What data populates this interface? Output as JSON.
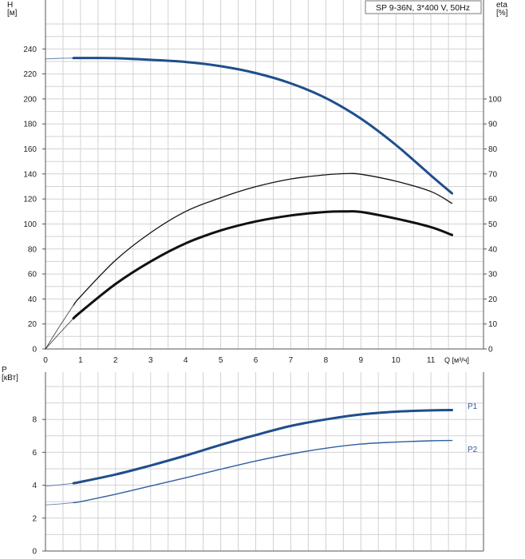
{
  "chart_data": [
    {
      "type": "line",
      "panel": "head-efficiency",
      "title": "SP 9-36N, 3*400 V, 50Hz",
      "ylabel_left": "H\n[м]",
      "ylabel_right": "eta\n[%]",
      "xlabel": "Q [м³/ч]",
      "xlim": [
        0,
        12.5
      ],
      "ylim_left": [
        0,
        260
      ],
      "ylim_right": [
        0,
        130
      ],
      "x_ticks": [
        0,
        1,
        2,
        3,
        4,
        5,
        6,
        7,
        8,
        9,
        10,
        11
      ],
      "y_ticks_left": [
        0,
        20,
        40,
        60,
        80,
        100,
        120,
        140,
        160,
        180,
        200,
        220,
        240
      ],
      "y_ticks_right": [
        0,
        10,
        20,
        30,
        40,
        50,
        60,
        70,
        80,
        90,
        100
      ],
      "grid": true,
      "series": [
        {
          "key": "head",
          "axis": "left",
          "color": "#1f4e8c",
          "extension": {
            "x": [
              0,
              0.4,
              0.8
            ],
            "y": [
              232,
              232.5,
              232.7
            ]
          },
          "x": [
            0.8,
            1,
            2,
            3,
            4,
            5,
            6,
            7,
            8,
            9,
            10,
            11,
            11.6
          ],
          "y": [
            232.7,
            232.8,
            232.6,
            231.3,
            229.6,
            226.2,
            220.7,
            212.5,
            200.7,
            184.3,
            163.2,
            138.8,
            124.5
          ]
        },
        {
          "key": "efficiency-total",
          "axis": "left",
          "color": "#111111",
          "extension": {
            "x": [
              0,
              0.4,
              0.8
            ],
            "y": [
              0,
              12.5,
              24.5
            ]
          },
          "x": [
            0.8,
            1,
            2,
            3,
            4,
            5,
            6,
            7,
            8,
            8.6,
            9,
            10,
            11,
            11.6
          ],
          "y": [
            24.5,
            29.5,
            52,
            70,
            84.5,
            94.8,
            102,
            106.8,
            109.6,
            110,
            109.6,
            104.3,
            97.5,
            91.2
          ]
        },
        {
          "key": "efficiency-hydraulic",
          "axis": "left",
          "color": "#111111",
          "extension": {
            "x": [
              0,
              0.4,
              0.8
            ],
            "y": [
              0,
              18,
              35
            ]
          },
          "x": [
            0.8,
            1,
            2,
            3,
            4,
            5,
            6,
            7,
            8,
            8.6,
            9,
            10,
            11,
            11.6
          ],
          "y": [
            35,
            42,
            71,
            93,
            110,
            121,
            129.8,
            136,
            139.3,
            140.3,
            139.8,
            134.2,
            126,
            116.5
          ]
        }
      ]
    },
    {
      "type": "line",
      "panel": "power",
      "ylabel": "P\n[кВт]",
      "xlim": [
        0,
        12.5
      ],
      "ylim": [
        0,
        10
      ],
      "y_ticks": [
        0,
        2,
        4,
        6,
        8
      ],
      "grid": true,
      "series": [
        {
          "name": "P1",
          "color": "#1f4e8c",
          "extension": {
            "x": [
              0,
              0.4,
              0.8
            ],
            "y": [
              3.95,
              4.02,
              4.12
            ]
          },
          "x": [
            0.8,
            1,
            2,
            3,
            4,
            5,
            6,
            7,
            8,
            9,
            10,
            11,
            11.6
          ],
          "y": [
            4.12,
            4.2,
            4.65,
            5.2,
            5.8,
            6.45,
            7.05,
            7.6,
            8.0,
            8.3,
            8.47,
            8.55,
            8.57
          ]
        },
        {
          "name": "P2",
          "color": "#2f5f9e",
          "extension": {
            "x": [
              0,
              0.4,
              0.8
            ],
            "y": [
              2.8,
              2.86,
              2.94
            ]
          },
          "x": [
            0.8,
            1,
            2,
            3,
            4,
            5,
            6,
            7,
            8,
            9,
            10,
            11,
            11.6
          ],
          "y": [
            2.94,
            3.0,
            3.45,
            3.95,
            4.45,
            4.97,
            5.47,
            5.9,
            6.25,
            6.5,
            6.62,
            6.7,
            6.72
          ]
        }
      ]
    }
  ]
}
